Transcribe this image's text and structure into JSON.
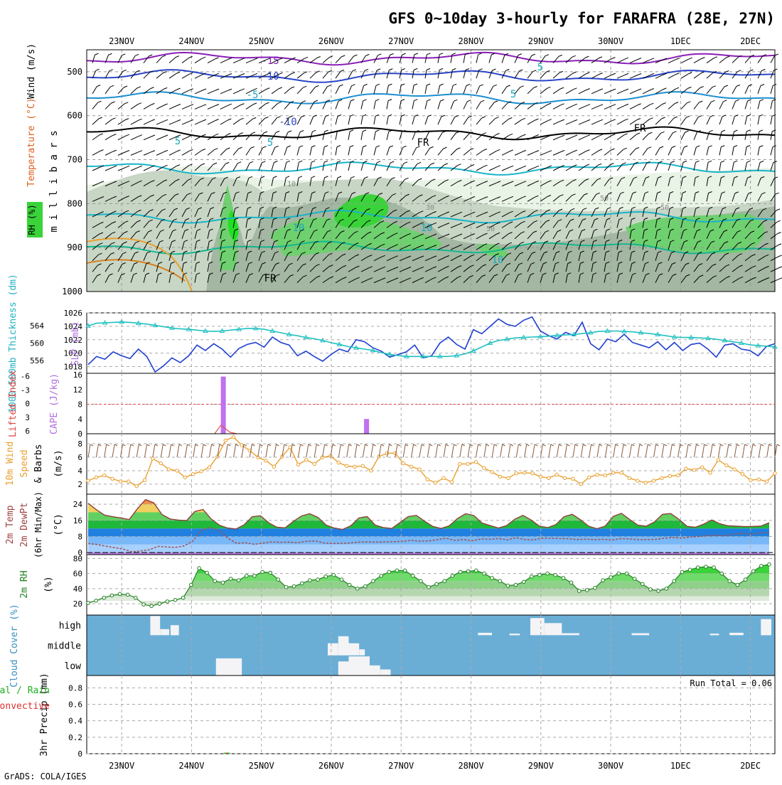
{
  "title": "GFS 0~10day 3-hourly for FARAFRA (28E, 27N)",
  "footer": "GrADS: COLA/IGES",
  "dates": [
    "23NOV",
    "24NOV",
    "25NOV",
    "26NOV",
    "27NOV",
    "28NOV",
    "29NOV",
    "30NOV",
    "1DEC",
    "2DEC"
  ],
  "chart_data": [
    {
      "id": "upper-air",
      "type": "heatmap",
      "ylabel": "m i l l i b a r s",
      "legend": [
        "RH (%)",
        "Temperature (°C)",
        "Wind (m/s)"
      ],
      "yticks": [
        500,
        600,
        700,
        800,
        900,
        1000
      ],
      "ylim": [
        450,
        1000
      ],
      "isotherms": [
        {
          "label": "-15",
          "level_mb": 470
        },
        {
          "label": "-10",
          "level_mb": 510
        },
        {
          "label": "-5",
          "level_mb": 560
        },
        {
          "label": "FR",
          "level_mb": 640
        },
        {
          "label": "5",
          "level_mb": 720
        },
        {
          "label": "5",
          "level_mb": 830
        },
        {
          "label": "10",
          "level_mb": 900
        }
      ],
      "rh_contour_labels": [
        "10",
        "30",
        "50"
      ],
      "contour_labels": [
        "-15",
        "-10",
        "-5",
        "5",
        "-10",
        "5",
        "FR",
        "FR",
        "5",
        "5",
        "10",
        "10",
        "FR",
        "10",
        "30",
        "50",
        "10",
        "50",
        "50"
      ]
    },
    {
      "id": "slp-thickness",
      "type": "line",
      "ylabel_left": "1000-500mb Thickness (dm)",
      "ylabel_right": "SLP (mb)",
      "left_ticks": [
        556,
        560,
        564
      ],
      "right_ticks": [
        1018,
        1020,
        1022,
        1024,
        1026
      ],
      "series": [
        {
          "name": "SLP (mb)",
          "color": "#1f3fd0",
          "values": [
            1018.3,
            1019.5,
            1019.1,
            1020.2,
            1019.6,
            1019.2,
            1020.6,
            1019.5,
            1017.2,
            1018.1,
            1019.3,
            1018.6,
            1019.6,
            1021.2,
            1020.4,
            1021.4,
            1020.6,
            1019.4,
            1020.7,
            1021.3,
            1021.6,
            1020.9,
            1022.4,
            1021.6,
            1021.2,
            1019.6,
            1020.3,
            1019.5,
            1018.8,
            1019.8,
            1020.6,
            1020.2,
            1022.0,
            1021.7,
            1020.8,
            1020.3,
            1019.4,
            1019.8,
            1020.2,
            1021.2,
            1019.3,
            1019.6,
            1021.5,
            1022.4,
            1021.3,
            1020.6,
            1023.5,
            1022.9,
            1024.0,
            1025.1,
            1024.3,
            1024.0,
            1024.9,
            1025.4,
            1023.3,
            1022.6,
            1022.1,
            1023.1,
            1022.6,
            1024.6,
            1021.4,
            1020.5,
            1022.1,
            1021.7,
            1022.8,
            1021.6,
            1021.2,
            1020.8,
            1021.7,
            1020.5,
            1021.6,
            1020.4,
            1021.3,
            1021.5,
            1020.6,
            1019.4,
            1021.2,
            1021.4,
            1020.6,
            1020.4,
            1019.6,
            1021.0,
            1021.4
          ]
        },
        {
          "name": "1000-500mb Thickness (dm)",
          "color": "#20c0c0",
          "values": [
            564.0,
            564.6,
            564.7,
            564.8,
            564.9,
            564.8,
            564.6,
            564.4,
            564.1,
            563.8,
            563.5,
            563.3,
            563.2,
            563.0,
            562.8,
            562.7,
            562.8,
            563.0,
            563.2,
            563.4,
            563.4,
            563.2,
            562.8,
            562.4,
            562.0,
            561.7,
            561.3,
            561.0,
            560.6,
            560.1,
            559.7,
            559.2,
            558.9,
            558.6,
            558.3,
            557.8,
            557.4,
            557.1,
            556.9,
            556.9,
            556.9,
            556.9,
            556.9,
            556.9,
            557.1,
            557.5,
            558.2,
            559.1,
            560.0,
            560.6,
            560.9,
            561.2,
            561.3,
            561.4,
            561.5,
            561.6,
            561.8,
            561.9,
            562.0,
            562.2,
            562.4,
            562.7,
            562.8,
            562.8,
            562.7,
            562.6,
            562.4,
            562.2,
            562.0,
            561.7,
            561.4,
            561.3,
            561.3,
            561.2,
            561.1,
            560.9,
            560.6,
            560.3,
            560.0,
            559.6,
            559.4,
            559.3,
            559.1
          ]
        }
      ]
    },
    {
      "id": "instability",
      "type": "bar",
      "ylabel_left": "Lifted Index",
      "ylabel_right": "CAPE (J/kg)",
      "li_ticks": [
        "-6",
        "-3",
        "0",
        "3",
        "6"
      ],
      "cape_ticks": [
        0,
        4,
        8,
        12,
        16
      ],
      "cape_color": "#c070f0",
      "cape_bars": [
        {
          "date_pos": 24.45,
          "value": 15.5
        },
        {
          "date_pos": 26.5,
          "value": 4.0
        }
      ],
      "li_series": [
        {
          "date_pos": 24.33,
          "value": 6.0
        },
        {
          "date_pos": 24.42,
          "value": 4.3
        },
        {
          "date_pos": 24.55,
          "value": 5.7
        },
        {
          "date_pos": 24.65,
          "value": 6.0
        }
      ]
    },
    {
      "id": "wind10m",
      "type": "line",
      "ylabel": "10m Wind Speed (m/s) & Barbs",
      "yticks": [
        2,
        4,
        6,
        8
      ],
      "ylim": [
        0.5,
        9.5
      ],
      "series": [
        {
          "name": "10m Wind Speed (m/s)",
          "color": "#e8a030",
          "values": [
            2.5,
            3.0,
            3.3,
            2.8,
            2.4,
            2.4,
            1.7,
            2.6,
            5.8,
            5.1,
            4.2,
            4.0,
            3.0,
            3.5,
            3.9,
            4.5,
            6.1,
            8.5,
            9.0,
            7.8,
            7.0,
            6.0,
            5.5,
            4.6,
            6.1,
            7.5,
            4.9,
            5.6,
            5.0,
            6.0,
            6.2,
            5.2,
            4.7,
            4.6,
            4.7,
            4.0,
            6.1,
            6.6,
            6.6,
            5.1,
            4.6,
            4.2,
            2.7,
            2.2,
            2.9,
            2.3,
            5.0,
            5.0,
            5.3,
            4.4,
            3.8,
            3.1,
            2.9,
            3.6,
            3.7,
            3.6,
            3.1,
            2.9,
            3.4,
            2.9,
            2.8,
            2.0,
            3.0,
            3.4,
            3.3,
            3.7,
            3.7,
            2.9,
            2.5,
            2.2,
            2.5,
            2.9,
            3.2,
            3.3,
            4.3,
            4.1,
            4.5,
            3.7,
            5.6,
            4.8,
            4.2,
            3.5,
            2.6,
            2.7,
            2.4,
            3.6
          ]
        }
      ]
    },
    {
      "id": "temperature",
      "type": "area",
      "ylabel": "2m Temp 2m DewPt (6hr Min/Max) (°C)",
      "yticks": [
        0,
        8,
        16,
        24
      ],
      "ylim": [
        -1,
        29
      ],
      "series": [
        {
          "name": "2m Temp",
          "color": "#904040",
          "values": [
            24.5,
            21.3,
            18.6,
            17.8,
            17.2,
            16.4,
            21.8,
            26.3,
            24.7,
            18.9,
            16.7,
            16.1,
            15.9,
            20.4,
            21.4,
            16.7,
            13.6,
            12.2,
            11.7,
            13.8,
            17.8,
            18.3,
            14.8,
            12.6,
            12.3,
            15.5,
            18.2,
            19.3,
            17.5,
            13.7,
            12.2,
            11.5,
            13.3,
            17.2,
            17.9,
            13.6,
            12.4,
            12.0,
            14.9,
            17.9,
            18.5,
            15.6,
            13.0,
            12.0,
            13.3,
            16.9,
            19.3,
            18.4,
            14.7,
            13.4,
            12.2,
            13.4,
            16.6,
            18.5,
            16.1,
            13.1,
            12.4,
            13.9,
            17.8,
            19.0,
            16.3,
            13.1,
            11.9,
            13.1,
            18.0,
            19.5,
            16.4,
            13.6,
            13.1,
            15.2,
            19.0,
            19.4,
            16.5,
            13.0,
            12.6,
            14.1,
            16.2,
            14.3,
            13.3,
            13.1,
            12.9,
            13.0,
            13.2,
            14.8
          ]
        },
        {
          "name": "2m DewPt",
          "color": "#a05050",
          "values": [
            4.5,
            4.0,
            3.2,
            2.5,
            1.8,
            0.4,
            0.8,
            1.4,
            3.1,
            2.8,
            2.6,
            3.3,
            5.8,
            11.2,
            12.5,
            11.0,
            7.1,
            4.6,
            4.9,
            4.1,
            4.7,
            5.3,
            5.1,
            5.2,
            4.9,
            5.6,
            5.8,
            4.8,
            4.5,
            4.6,
            4.8,
            5.2,
            5.3,
            5.2,
            5.3,
            5.4,
            5.6,
            6.1,
            5.7,
            5.8,
            6.4,
            7.1,
            6.1,
            6.5,
            5.9,
            6.8,
            6.6,
            7.0,
            6.3,
            7.4,
            6.5,
            6.3,
            7.2,
            7.1,
            7.0,
            6.9,
            6.5,
            6.7,
            6.4,
            6.6,
            6.3,
            6.9,
            6.8,
            6.4,
            6.5,
            6.6,
            7.1,
            7.5,
            7.2,
            7.8,
            8.0,
            8.4,
            8.7,
            8.3,
            9.3,
            9.5,
            9.1,
            9.8,
            9.8
          ]
        }
      ]
    },
    {
      "id": "rh2m",
      "type": "area",
      "ylabel": "2m RH (%)",
      "yticks": [
        20,
        40,
        60,
        80
      ],
      "ylim": [
        5,
        85
      ],
      "series": [
        {
          "name": "2m RH (%)",
          "color": "#208020",
          "values": [
            21,
            24,
            28,
            31,
            33,
            32,
            28,
            19,
            17,
            20,
            23,
            25,
            28,
            45,
            67,
            61,
            50,
            48,
            53,
            51,
            57,
            57,
            62,
            61,
            52,
            42,
            43,
            47,
            51,
            52,
            56,
            58,
            52,
            45,
            40,
            43,
            50,
            57,
            62,
            64,
            64,
            57,
            50,
            42,
            46,
            50,
            57,
            62,
            63,
            64,
            60,
            54,
            50,
            44,
            45,
            49,
            56,
            58,
            60,
            58,
            54,
            48,
            37,
            38,
            41,
            51,
            55,
            60,
            60,
            53,
            46,
            39,
            37,
            40,
            50,
            62,
            65,
            68,
            69,
            68,
            60,
            50,
            45,
            52,
            63,
            70,
            72
          ]
        }
      ]
    },
    {
      "id": "cloud-cover",
      "type": "heatmap",
      "ylabel": "Cloud Cover (%)",
      "rows": [
        "high",
        "middle",
        "low"
      ],
      "background_color": "#6aaed6",
      "cloud_color": "#f4f4f6",
      "cells": [
        {
          "row": "high",
          "start": 23.41,
          "end": 23.55,
          "amount": 0.95
        },
        {
          "row": "high",
          "start": 23.55,
          "end": 23.68,
          "amount": 0.3
        },
        {
          "row": "high",
          "start": 23.7,
          "end": 23.82,
          "amount": 0.5
        },
        {
          "row": "high",
          "start": 28.1,
          "end": 28.3,
          "amount": 0.12
        },
        {
          "row": "high",
          "start": 28.55,
          "end": 28.7,
          "amount": 0.08
        },
        {
          "row": "high",
          "start": 28.85,
          "end": 29.05,
          "amount": 0.85
        },
        {
          "row": "high",
          "start": 29.05,
          "end": 29.3,
          "amount": 0.6
        },
        {
          "row": "high",
          "start": 29.3,
          "end": 29.55,
          "amount": 0.1
        },
        {
          "row": "high",
          "start": 30.3,
          "end": 30.55,
          "amount": 0.1
        },
        {
          "row": "high",
          "start": 31.42,
          "end": 31.55,
          "amount": 0.08
        },
        {
          "row": "high",
          "start": 31.7,
          "end": 31.9,
          "amount": 0.12
        },
        {
          "row": "high",
          "start": 32.15,
          "end": 32.3,
          "amount": 0.8
        },
        {
          "row": "middle",
          "start": 25.95,
          "end": 26.1,
          "amount": 0.6
        },
        {
          "row": "middle",
          "start": 26.1,
          "end": 26.25,
          "amount": 0.95
        },
        {
          "row": "middle",
          "start": 26.25,
          "end": 26.4,
          "amount": 0.6
        },
        {
          "row": "middle",
          "start": 26.4,
          "end": 26.48,
          "amount": 0.3
        },
        {
          "row": "low",
          "start": 24.35,
          "end": 24.72,
          "amount": 0.85
        },
        {
          "row": "low",
          "start": 26.1,
          "end": 26.25,
          "amount": 0.7
        },
        {
          "row": "low",
          "start": 26.25,
          "end": 26.55,
          "amount": 0.95
        },
        {
          "row": "low",
          "start": 26.55,
          "end": 26.7,
          "amount": 0.5
        },
        {
          "row": "low",
          "start": 26.7,
          "end": 26.85,
          "amount": 0.3
        }
      ]
    },
    {
      "id": "precip",
      "type": "bar",
      "ylabel": "3hr Precip (mm)",
      "legend": [
        "Total / Rain",
        "Convective"
      ],
      "annotation": "Run Total = 0.06",
      "yticks": [
        "0",
        "0.2",
        "0.4",
        "0.6",
        "0.8"
      ],
      "ylim": [
        0,
        0.95
      ],
      "bars": [
        {
          "date_pos": 24.5,
          "total": 0.06,
          "convective": 0.03
        }
      ]
    }
  ]
}
